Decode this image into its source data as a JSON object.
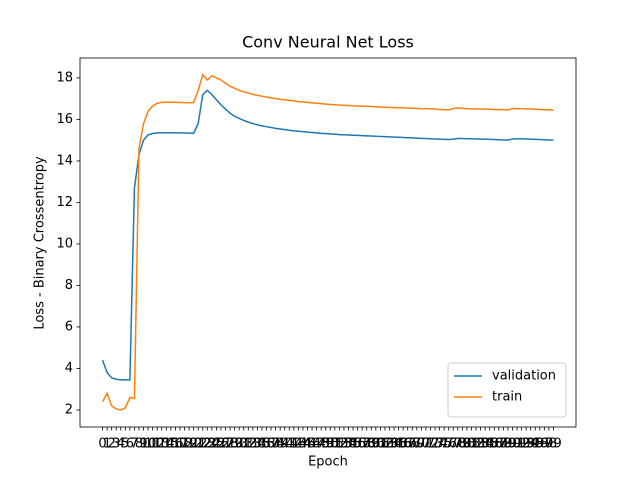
{
  "chart_data": {
    "type": "line",
    "title": "Conv Neural Net Loss",
    "x_label": "Epoch",
    "y_label": "Loss - Binary Crossentropy",
    "categories": [
      "0",
      "1",
      "2",
      "3",
      "4",
      "5",
      "6",
      "7",
      "8",
      "9",
      "10",
      "11",
      "12",
      "13",
      "14",
      "15",
      "16",
      "17",
      "18",
      "19",
      "20",
      "21",
      "22",
      "23",
      "24",
      "25",
      "26",
      "27",
      "28",
      "29",
      "30",
      "31",
      "32",
      "33",
      "34",
      "35",
      "36",
      "37",
      "38",
      "39",
      "40",
      "41",
      "42",
      "43",
      "44",
      "45",
      "46",
      "47",
      "48",
      "49",
      "50",
      "51",
      "52",
      "53",
      "54",
      "55",
      "56",
      "57",
      "58",
      "59",
      "60",
      "61",
      "62",
      "63",
      "64",
      "65",
      "66",
      "67",
      "68",
      "69",
      "70",
      "71",
      "72",
      "73",
      "74",
      "75",
      "76",
      "77",
      "78",
      "79",
      "80",
      "81",
      "82",
      "83",
      "84",
      "85",
      "86",
      "87",
      "88",
      "89",
      "90",
      "91",
      "92",
      "93",
      "94",
      "95",
      "96",
      "97",
      "98",
      "99"
    ],
    "series": [
      {
        "name": "validation",
        "color": "#1f77b4",
        "values": [
          4.4,
          3.8,
          3.55,
          3.48,
          3.45,
          3.45,
          3.45,
          12.7,
          14.3,
          15.0,
          15.25,
          15.32,
          15.35,
          15.36,
          15.36,
          15.36,
          15.35,
          15.35,
          15.35,
          15.34,
          15.33,
          15.8,
          17.2,
          17.4,
          17.2,
          16.95,
          16.7,
          16.5,
          16.3,
          16.15,
          16.05,
          15.95,
          15.87,
          15.8,
          15.74,
          15.69,
          15.65,
          15.61,
          15.57,
          15.54,
          15.51,
          15.48,
          15.45,
          15.43,
          15.41,
          15.39,
          15.37,
          15.35,
          15.33,
          15.32,
          15.3,
          15.29,
          15.27,
          15.26,
          15.25,
          15.24,
          15.23,
          15.22,
          15.21,
          15.2,
          15.19,
          15.18,
          15.17,
          15.16,
          15.15,
          15.14,
          15.13,
          15.12,
          15.11,
          15.1,
          15.09,
          15.08,
          15.07,
          15.06,
          15.05,
          15.04,
          15.03,
          15.05,
          15.08,
          15.08,
          15.07,
          15.07,
          15.06,
          15.05,
          15.05,
          15.04,
          15.03,
          15.02,
          15.01,
          15.0,
          15.06,
          15.07,
          15.07,
          15.06,
          15.05,
          15.04,
          15.03,
          15.02,
          15.01,
          15.0
        ]
      },
      {
        "name": "train",
        "color": "#ff7f0e",
        "values": [
          2.4,
          2.8,
          2.2,
          2.05,
          2.0,
          2.1,
          2.6,
          2.55,
          14.6,
          15.8,
          16.4,
          16.65,
          16.78,
          16.82,
          16.83,
          16.83,
          16.82,
          16.82,
          16.81,
          16.8,
          16.82,
          17.4,
          18.15,
          17.9,
          18.1,
          18.0,
          17.9,
          17.75,
          17.6,
          17.5,
          17.4,
          17.33,
          17.27,
          17.21,
          17.16,
          17.12,
          17.08,
          17.04,
          17.0,
          16.97,
          16.94,
          16.92,
          16.89,
          16.86,
          16.84,
          16.82,
          16.8,
          16.78,
          16.76,
          16.74,
          16.72,
          16.71,
          16.69,
          16.68,
          16.67,
          16.66,
          16.65,
          16.64,
          16.63,
          16.62,
          16.61,
          16.6,
          16.59,
          16.58,
          16.57,
          16.56,
          16.56,
          16.55,
          16.54,
          16.53,
          16.52,
          16.52,
          16.51,
          16.5,
          16.48,
          16.47,
          16.46,
          16.53,
          16.55,
          16.54,
          16.52,
          16.51,
          16.51,
          16.5,
          16.5,
          16.49,
          16.48,
          16.48,
          16.47,
          16.46,
          16.53,
          16.52,
          16.52,
          16.51,
          16.5,
          16.49,
          16.48,
          16.47,
          16.46,
          16.45
        ]
      }
    ],
    "ylim": [
      1.18,
      18.96
    ],
    "yticks": [
      2,
      4,
      6,
      8,
      10,
      12,
      14,
      16,
      18
    ],
    "grid": false,
    "legend": "lower right"
  }
}
